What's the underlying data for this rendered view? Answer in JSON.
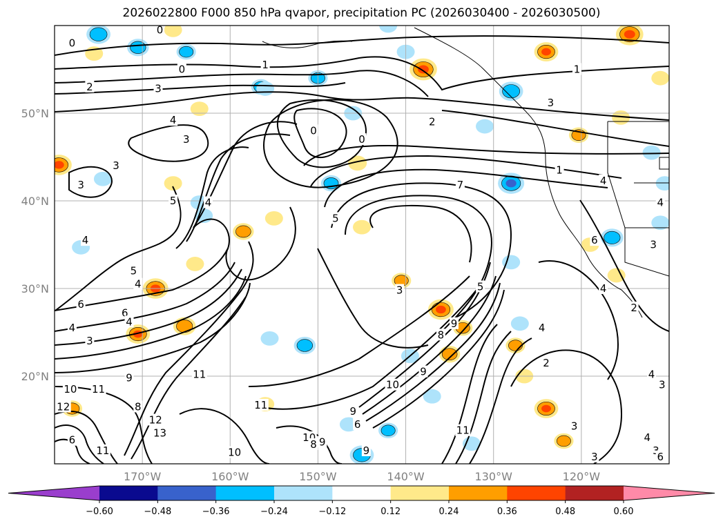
{
  "title": "2026022800 F000 850 hPa qvapor, precipitation PC (2026030400 - 2026030500)",
  "map": {
    "lon_range": [
      -180,
      -110
    ],
    "lat_range": [
      10,
      60
    ],
    "lat_ticks": [
      {
        "value": 50,
        "label": "50°N"
      },
      {
        "value": 40,
        "label": "40°N"
      },
      {
        "value": 30,
        "label": "30°N"
      },
      {
        "value": 20,
        "label": "20°N"
      }
    ],
    "lon_ticks": [
      {
        "value": -170,
        "label": "170°W"
      },
      {
        "value": -160,
        "label": "160°W"
      },
      {
        "value": -150,
        "label": "150°W"
      },
      {
        "value": -140,
        "label": "140°W"
      },
      {
        "value": -130,
        "label": "130°W"
      },
      {
        "value": -120,
        "label": "120°W"
      }
    ],
    "grid": true,
    "gridline_color": "#b0b0b0",
    "contour_labels": [
      {
        "text": "0",
        "lon": -178,
        "lat": 58
      },
      {
        "text": "0",
        "lon": -168,
        "lat": 59.5
      },
      {
        "text": "0",
        "lon": -165.5,
        "lat": 55
      },
      {
        "text": "1",
        "lon": -156,
        "lat": 55.5
      },
      {
        "text": "2",
        "lon": -176,
        "lat": 53
      },
      {
        "text": "3",
        "lon": -168.2,
        "lat": 52.8
      },
      {
        "text": "4",
        "lon": -166.5,
        "lat": 49.2
      },
      {
        "text": "3",
        "lon": -165,
        "lat": 47
      },
      {
        "text": "3",
        "lon": -173,
        "lat": 44
      },
      {
        "text": "3",
        "lon": -177,
        "lat": 41.8
      },
      {
        "text": "5",
        "lon": -166.5,
        "lat": 40
      },
      {
        "text": "4",
        "lon": -162.5,
        "lat": 39.8
      },
      {
        "text": "4",
        "lon": -176.5,
        "lat": 35.5
      },
      {
        "text": "5",
        "lon": -171,
        "lat": 32
      },
      {
        "text": "4",
        "lon": -170.5,
        "lat": 30.5
      },
      {
        "text": "6",
        "lon": -177,
        "lat": 28.2
      },
      {
        "text": "6",
        "lon": -172,
        "lat": 27.2
      },
      {
        "text": "4",
        "lon": -171.5,
        "lat": 26.2
      },
      {
        "text": "4",
        "lon": -178,
        "lat": 25.5
      },
      {
        "text": "3",
        "lon": -176,
        "lat": 24
      },
      {
        "text": "11",
        "lon": -163.5,
        "lat": 20.2
      },
      {
        "text": "9",
        "lon": -171.5,
        "lat": 19.8
      },
      {
        "text": "10",
        "lon": -178.2,
        "lat": 18.5
      },
      {
        "text": "11",
        "lon": -175,
        "lat": 18.5
      },
      {
        "text": "12",
        "lon": -179,
        "lat": 16.5
      },
      {
        "text": "8",
        "lon": -170.5,
        "lat": 16.5
      },
      {
        "text": "12",
        "lon": -168.5,
        "lat": 15
      },
      {
        "text": "13",
        "lon": -168,
        "lat": 13.5
      },
      {
        "text": "6",
        "lon": -178,
        "lat": 12.7
      },
      {
        "text": "11",
        "lon": -174.5,
        "lat": 11.5
      },
      {
        "text": "10",
        "lon": -159.5,
        "lat": 11.3
      },
      {
        "text": "10",
        "lon": -151,
        "lat": 13
      },
      {
        "text": "9",
        "lon": -149.5,
        "lat": 12.5
      },
      {
        "text": "8",
        "lon": -150.5,
        "lat": 12.2
      },
      {
        "text": "11",
        "lon": -156.5,
        "lat": 16.7
      },
      {
        "text": "9",
        "lon": -146,
        "lat": 16
      },
      {
        "text": "6",
        "lon": -145.5,
        "lat": 14.5
      },
      {
        "text": "9",
        "lon": -144.5,
        "lat": 11.5
      },
      {
        "text": "10",
        "lon": -141.5,
        "lat": 19
      },
      {
        "text": "9",
        "lon": -138,
        "lat": 20.5
      },
      {
        "text": "11",
        "lon": -133.5,
        "lat": 13.8
      },
      {
        "text": "8",
        "lon": -136,
        "lat": 24.7
      },
      {
        "text": "9",
        "lon": -134.5,
        "lat": 26
      },
      {
        "text": "3",
        "lon": -140.7,
        "lat": 29.8
      },
      {
        "text": "5",
        "lon": -131.5,
        "lat": 30.2
      },
      {
        "text": "5",
        "lon": -148,
        "lat": 38
      },
      {
        "text": "0",
        "lon": -150.5,
        "lat": 48
      },
      {
        "text": "0",
        "lon": -145,
        "lat": 47
      },
      {
        "text": "2",
        "lon": -137,
        "lat": 49
      },
      {
        "text": "1",
        "lon": -122.5,
        "lat": 43.5
      },
      {
        "text": "1",
        "lon": -120.5,
        "lat": 55
      },
      {
        "text": "3",
        "lon": -123.5,
        "lat": 51.2
      },
      {
        "text": "7",
        "lon": -133.8,
        "lat": 41.8
      },
      {
        "text": "4",
        "lon": -117.5,
        "lat": 42.3
      },
      {
        "text": "4",
        "lon": -111,
        "lat": 39.8
      },
      {
        "text": "6",
        "lon": -118.5,
        "lat": 35.5
      },
      {
        "text": "3",
        "lon": -111.8,
        "lat": 35
      },
      {
        "text": "4",
        "lon": -117.5,
        "lat": 30
      },
      {
        "text": "2",
        "lon": -114,
        "lat": 27.8
      },
      {
        "text": "4",
        "lon": -124.5,
        "lat": 25.5
      },
      {
        "text": "2",
        "lon": -124,
        "lat": 21.5
      },
      {
        "text": "4",
        "lon": -112,
        "lat": 20.2
      },
      {
        "text": "3",
        "lon": -110.8,
        "lat": 19
      },
      {
        "text": "3",
        "lon": -120.8,
        "lat": 14.3
      },
      {
        "text": "4",
        "lon": -112.5,
        "lat": 13
      },
      {
        "text": "3",
        "lon": -111.5,
        "lat": 11.5
      },
      {
        "text": "6",
        "lon": -111,
        "lat": 10.8
      },
      {
        "text": "3",
        "lon": -118.5,
        "lat": 10.8
      }
    ],
    "precip_anomalies": [
      {
        "lon": -179.5,
        "lat": 44.1,
        "value": 0.4
      },
      {
        "lon": -168.5,
        "lat": 30.0,
        "value": 0.4
      },
      {
        "lon": -170.5,
        "lat": 24.8,
        "value": 0.36
      },
      {
        "lon": -165.2,
        "lat": 25.7,
        "value": 0.32
      },
      {
        "lon": -138.0,
        "lat": 55.0,
        "value": 0.45
      },
      {
        "lon": -124.0,
        "lat": 57.0,
        "value": 0.36
      },
      {
        "lon": -114.5,
        "lat": 59.0,
        "value": 0.45
      },
      {
        "lon": -136.0,
        "lat": 27.6,
        "value": 0.4
      },
      {
        "lon": -140.5,
        "lat": 30.9,
        "value": 0.24
      },
      {
        "lon": -135.0,
        "lat": 22.5,
        "value": 0.28
      },
      {
        "lon": -124.0,
        "lat": 16.3,
        "value": 0.36
      },
      {
        "lon": -158.5,
        "lat": 36.5,
        "value": 0.28
      },
      {
        "lon": -122.0,
        "lat": 12.6,
        "value": 0.24
      },
      {
        "lon": -120.3,
        "lat": 47.5,
        "value": 0.24
      },
      {
        "lon": -119.0,
        "lat": 35.0,
        "value": 0.2
      },
      {
        "lon": -111.0,
        "lat": 54.0,
        "value": 0.2
      },
      {
        "lon": -156.0,
        "lat": 16.8,
        "value": 0.2
      },
      {
        "lon": -166.5,
        "lat": 42.0,
        "value": 0.2
      },
      {
        "lon": -126.5,
        "lat": 20.0,
        "value": 0.2
      },
      {
        "lon": -127.5,
        "lat": 23.5,
        "value": 0.24
      },
      {
        "lon": -133.5,
        "lat": 25.5,
        "value": 0.24
      },
      {
        "lon": -145.5,
        "lat": 44.3,
        "value": 0.22
      },
      {
        "lon": -145.0,
        "lat": 37.0,
        "value": 0.2
      },
      {
        "lon": -115.5,
        "lat": 49.5,
        "value": 0.2
      },
      {
        "lon": -166.5,
        "lat": 59.5,
        "value": 0.2
      },
      {
        "lon": -175.5,
        "lat": 56.8,
        "value": 0.2
      },
      {
        "lon": -155.0,
        "lat": 38.0,
        "value": 0.2
      },
      {
        "lon": -116.0,
        "lat": 31.5,
        "value": 0.2
      },
      {
        "lon": -164.0,
        "lat": 32.8,
        "value": 0.2
      },
      {
        "lon": -178.0,
        "lat": 16.3,
        "value": 0.26
      },
      {
        "lon": -163.5,
        "lat": 50.5,
        "value": 0.2
      },
      {
        "lon": -175.0,
        "lat": 59.0,
        "value": -0.36
      },
      {
        "lon": -170.5,
        "lat": 57.5,
        "value": -0.3
      },
      {
        "lon": -165.0,
        "lat": 57.0,
        "value": -0.24
      },
      {
        "lon": -156.5,
        "lat": 53.0,
        "value": -0.24
      },
      {
        "lon": -150.0,
        "lat": 54.0,
        "value": -0.24
      },
      {
        "lon": -148.5,
        "lat": 42.0,
        "value": -0.26
      },
      {
        "lon": -128.0,
        "lat": 42.0,
        "value": -0.42
      },
      {
        "lon": -131.0,
        "lat": 48.5,
        "value": -0.2
      },
      {
        "lon": -128.0,
        "lat": 52.5,
        "value": -0.36
      },
      {
        "lon": -116.5,
        "lat": 35.8,
        "value": -0.32
      },
      {
        "lon": -151.5,
        "lat": 23.5,
        "value": -0.3
      },
      {
        "lon": -155.5,
        "lat": 24.3,
        "value": -0.2
      },
      {
        "lon": -145.0,
        "lat": 11.0,
        "value": -0.36
      },
      {
        "lon": -142.0,
        "lat": 13.8,
        "value": -0.24
      },
      {
        "lon": -146.5,
        "lat": 14.5,
        "value": -0.2
      },
      {
        "lon": -137.0,
        "lat": 17.7,
        "value": -0.2
      },
      {
        "lon": -128.0,
        "lat": 33.0,
        "value": -0.2
      },
      {
        "lon": -127.0,
        "lat": 26.0,
        "value": -0.2
      },
      {
        "lon": -139.5,
        "lat": 22.3,
        "value": -0.2
      },
      {
        "lon": -132.5,
        "lat": 12.3,
        "value": -0.2
      },
      {
        "lon": -177.0,
        "lat": 34.7,
        "value": -0.2
      },
      {
        "lon": -174.5,
        "lat": 42.5,
        "value": -0.2
      },
      {
        "lon": -163.5,
        "lat": 39.8,
        "value": -0.2
      },
      {
        "lon": -146.0,
        "lat": 50.0,
        "value": -0.2
      },
      {
        "lon": -156.0,
        "lat": 52.8,
        "value": -0.2
      },
      {
        "lon": -110.5,
        "lat": 42.0,
        "value": -0.2
      },
      {
        "lon": -112.0,
        "lat": 45.5,
        "value": -0.2
      },
      {
        "lon": -111.0,
        "lat": 37.5,
        "value": -0.2
      },
      {
        "lon": -163.0,
        "lat": 38.3,
        "value": -0.2
      },
      {
        "lon": -140.0,
        "lat": 57.0,
        "value": -0.2
      },
      {
        "lon": -142.0,
        "lat": 60.0,
        "value": -0.2
      }
    ]
  },
  "colorbar": {
    "colors": [
      "#9a3ecd",
      "#0a0a8f",
      "#3862cc",
      "#00bfff",
      "#aee3fb",
      "#ffffff",
      "#ffe98a",
      "#ff9e00",
      "#ff4400",
      "#b22222",
      "#ff8aa8"
    ],
    "bounds": [
      -0.6,
      -0.48,
      -0.36,
      -0.24,
      -0.12,
      0.12,
      0.24,
      0.36,
      0.48,
      0.6
    ],
    "tick_labels": [
      "−0.60",
      "−0.48",
      "−0.36",
      "−0.24",
      "−0.12",
      "0.12",
      "0.24",
      "0.36",
      "0.48",
      "0.60"
    ]
  }
}
